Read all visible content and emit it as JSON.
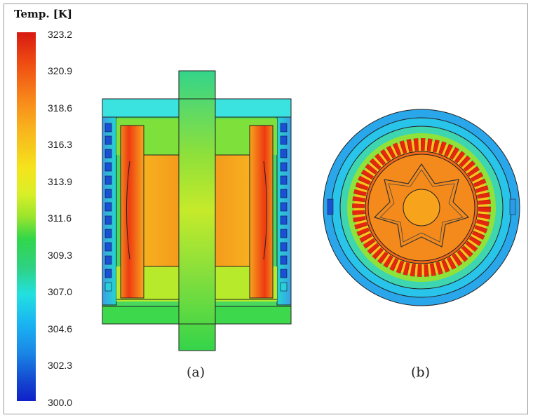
{
  "colorbar": {
    "title": "Temp. [K]",
    "ticks": [
      "323.2",
      "320.9",
      "318.6",
      "316.3",
      "313.9",
      "311.6",
      "309.3",
      "307.0",
      "304.6",
      "302.3",
      "300.0"
    ],
    "unit": "K",
    "min": 300.0,
    "max": 323.2
  },
  "figures": {
    "a": {
      "label": "(a)"
    },
    "b": {
      "label": "(b)"
    }
  }
}
